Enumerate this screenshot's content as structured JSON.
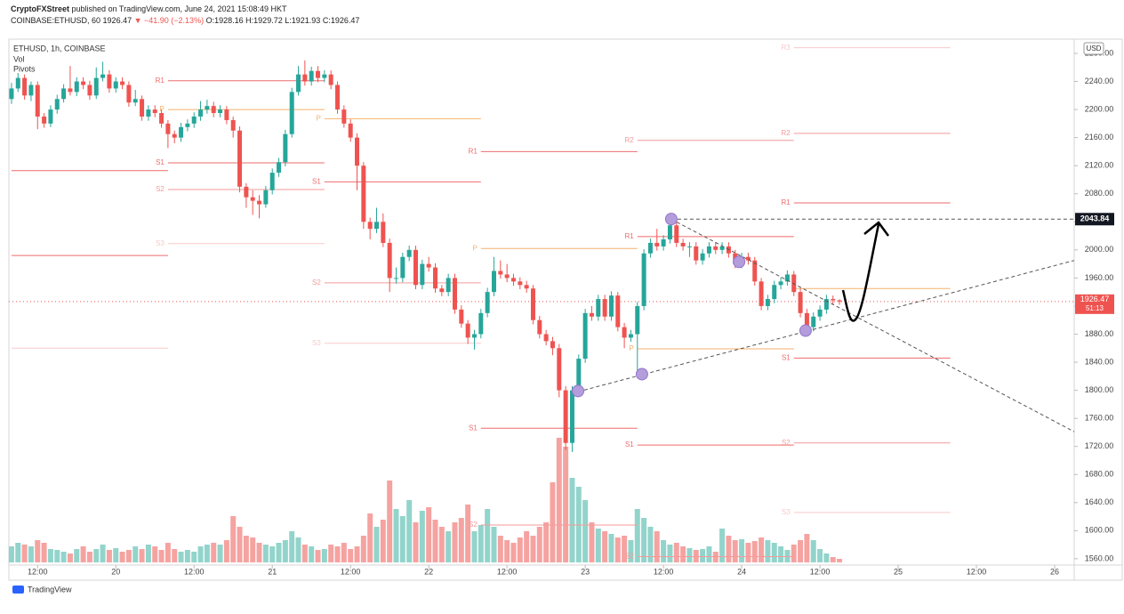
{
  "header": {
    "publisher": "CryptoFXStreet",
    "published": "published on TradingView.com, June 24, 2021 15:08:49 HKT",
    "symbol": "COINBASE:ETHUSD, 60",
    "change": "▼ −41.90 (−2.13%)",
    "ohlc_labels": [
      "O:",
      "H:",
      "L:",
      "C:"
    ]
  },
  "footer": {
    "brand": "TradingView"
  },
  "chart_data": {
    "type": "candlestick",
    "legend": [
      "ETHUSD, 1h, COINBASE",
      "Vol",
      "Pivots"
    ],
    "currency": "USD",
    "up_color": "#26a69a",
    "down_color": "#ef5350",
    "volume_up_color": "#92d4cb",
    "volume_down_color": "#f5a3a1",
    "xlim": [
      -0.4,
      163
    ],
    "ylim": [
      1551,
      2299
    ],
    "xticks": [
      {
        "value": 4,
        "label": "12:00"
      },
      {
        "value": 16,
        "label": "20"
      },
      {
        "value": 28,
        "label": "12:00"
      },
      {
        "value": 40,
        "label": "21"
      },
      {
        "value": 52,
        "label": "12:00"
      },
      {
        "value": 64,
        "label": "22"
      },
      {
        "value": 76,
        "label": "12:00"
      },
      {
        "value": 88,
        "label": "23"
      },
      {
        "value": 100,
        "label": "12:00"
      },
      {
        "value": 112,
        "label": "24"
      },
      {
        "value": 124,
        "label": "12:00"
      },
      {
        "value": 136,
        "label": "25"
      },
      {
        "value": 148,
        "label": "12:00"
      },
      {
        "value": 160,
        "label": "26"
      }
    ],
    "yticks": [
      {
        "value": 1560,
        "label": "1560.00"
      },
      {
        "value": 1600,
        "label": "1600.00"
      },
      {
        "value": 1640,
        "label": "1640.00"
      },
      {
        "value": 1680,
        "label": "1680.00"
      },
      {
        "value": 1720,
        "label": "1720.00"
      },
      {
        "value": 1760,
        "label": "1760.00"
      },
      {
        "value": 1800,
        "label": "1800.00"
      },
      {
        "value": 1840,
        "label": "1840.00"
      },
      {
        "value": 1880,
        "label": "1880.00"
      },
      {
        "value": 1920,
        "label": "1920.00"
      },
      {
        "value": 1960,
        "label": "1960.00"
      },
      {
        "value": 2000,
        "label": "2000.00"
      },
      {
        "value": 2040,
        "label": "2040.00"
      },
      {
        "value": 2080,
        "label": "2080.00"
      },
      {
        "value": 2120,
        "label": "2120.00"
      },
      {
        "value": 2160,
        "label": "2160.00"
      },
      {
        "value": 2200,
        "label": "2200.00"
      },
      {
        "value": 2240,
        "label": "2240.00"
      },
      {
        "value": 2280,
        "label": "2280.00"
      }
    ],
    "candles": [
      [
        2215,
        2238,
        2208,
        2230
      ],
      [
        2230,
        2252,
        2225,
        2245
      ],
      [
        2245,
        2250,
        2214,
        2220
      ],
      [
        2220,
        2240,
        2212,
        2235
      ],
      [
        2235,
        2240,
        2172,
        2190
      ],
      [
        2190,
        2195,
        2174,
        2180
      ],
      [
        2180,
        2206,
        2175,
        2200
      ],
      [
        2200,
        2221,
        2194,
        2215
      ],
      [
        2215,
        2236,
        2210,
        2230
      ],
      [
        2230,
        2262,
        2220,
        2225
      ],
      [
        2225,
        2246,
        2219,
        2240
      ],
      [
        2240,
        2246,
        2229,
        2235
      ],
      [
        2235,
        2241,
        2214,
        2220
      ],
      [
        2220,
        2260,
        2215,
        2245
      ],
      [
        2245,
        2268,
        2240,
        2250
      ],
      [
        2250,
        2256,
        2224,
        2230
      ],
      [
        2230,
        2246,
        2224,
        2240
      ],
      [
        2240,
        2246,
        2229,
        2235
      ],
      [
        2235,
        2240,
        2204,
        2210
      ],
      [
        2210,
        2228,
        2205,
        2215
      ],
      [
        2215,
        2220,
        2184,
        2190
      ],
      [
        2190,
        2206,
        2184,
        2200
      ],
      [
        2200,
        2206,
        2189,
        2195
      ],
      [
        2195,
        2200,
        2174,
        2180
      ],
      [
        2180,
        2185,
        2145,
        2165
      ],
      [
        2165,
        2170,
        2152,
        2160
      ],
      [
        2160,
        2181,
        2154,
        2175
      ],
      [
        2175,
        2186,
        2169,
        2180
      ],
      [
        2180,
        2196,
        2174,
        2190
      ],
      [
        2190,
        2212,
        2184,
        2200
      ],
      [
        2200,
        2214,
        2194,
        2205
      ],
      [
        2205,
        2211,
        2189,
        2195
      ],
      [
        2195,
        2206,
        2189,
        2200
      ],
      [
        2200,
        2205,
        2179,
        2185
      ],
      [
        2185,
        2190,
        2160,
        2170
      ],
      [
        2170,
        2176,
        2082,
        2090
      ],
      [
        2090,
        2095,
        2060,
        2075
      ],
      [
        2075,
        2085,
        2050,
        2070
      ],
      [
        2070,
        2078,
        2045,
        2065
      ],
      [
        2065,
        2091,
        2060,
        2085
      ],
      [
        2085,
        2116,
        2079,
        2110
      ],
      [
        2110,
        2131,
        2104,
        2125
      ],
      [
        2125,
        2171,
        2119,
        2165
      ],
      [
        2165,
        2231,
        2160,
        2225
      ],
      [
        2225,
        2262,
        2220,
        2250
      ],
      [
        2250,
        2270,
        2234,
        2240
      ],
      [
        2240,
        2261,
        2234,
        2255
      ],
      [
        2255,
        2262,
        2239,
        2245
      ],
      [
        2245,
        2256,
        2239,
        2250
      ],
      [
        2250,
        2256,
        2229,
        2235
      ],
      [
        2235,
        2240,
        2194,
        2200
      ],
      [
        2200,
        2206,
        2174,
        2180
      ],
      [
        2180,
        2186,
        2154,
        2160
      ],
      [
        2160,
        2166,
        2085,
        2120
      ],
      [
        2120,
        2125,
        2030,
        2040
      ],
      [
        2040,
        2046,
        2015,
        2030
      ],
      [
        2030,
        2060,
        2024,
        2040
      ],
      [
        2040,
        2052,
        2004,
        2010
      ],
      [
        2010,
        2016,
        1940,
        1960
      ],
      [
        1960,
        1975,
        1952,
        1960
      ],
      [
        1960,
        1996,
        1954,
        1990
      ],
      [
        1990,
        2006,
        1984,
        2000
      ],
      [
        2000,
        2006,
        1944,
        1950
      ],
      [
        1950,
        1986,
        1944,
        1980
      ],
      [
        1980,
        1990,
        1969,
        1975
      ],
      [
        1975,
        1981,
        1939,
        1945
      ],
      [
        1945,
        1950,
        1934,
        1940
      ],
      [
        1940,
        1966,
        1934,
        1960
      ],
      [
        1960,
        1966,
        1909,
        1915
      ],
      [
        1915,
        1921,
        1889,
        1895
      ],
      [
        1895,
        1900,
        1866,
        1875
      ],
      [
        1875,
        1886,
        1858,
        1880
      ],
      [
        1880,
        1916,
        1874,
        1910
      ],
      [
        1910,
        1946,
        1904,
        1940
      ],
      [
        1940,
        1990,
        1934,
        1970
      ],
      [
        1970,
        1985,
        1959,
        1965
      ],
      [
        1965,
        1980,
        1954,
        1960
      ],
      [
        1960,
        1966,
        1949,
        1955
      ],
      [
        1955,
        1961,
        1944,
        1950
      ],
      [
        1950,
        1956,
        1939,
        1945
      ],
      [
        1945,
        1950,
        1894,
        1900
      ],
      [
        1900,
        1906,
        1874,
        1880
      ],
      [
        1880,
        1886,
        1864,
        1870
      ],
      [
        1870,
        1876,
        1850,
        1860
      ],
      [
        1860,
        1866,
        1790,
        1800
      ],
      [
        1800,
        1806,
        1715,
        1725
      ],
      [
        1725,
        1806,
        1712,
        1800
      ],
      [
        1800,
        1851,
        1794,
        1845
      ],
      [
        1845,
        1916,
        1839,
        1910
      ],
      [
        1910,
        1920,
        1899,
        1905
      ],
      [
        1905,
        1936,
        1899,
        1930
      ],
      [
        1930,
        1936,
        1899,
        1905
      ],
      [
        1905,
        1941,
        1899,
        1935
      ],
      [
        1935,
        1940,
        1884,
        1890
      ],
      [
        1890,
        1896,
        1860,
        1875
      ],
      [
        1875,
        1886,
        1869,
        1880
      ],
      [
        1880,
        1926,
        1820,
        1920
      ],
      [
        1920,
        2001,
        1914,
        1995
      ],
      [
        1995,
        2016,
        1989,
        2010
      ],
      [
        2010,
        2030,
        1999,
        2005
      ],
      [
        2005,
        2021,
        1999,
        2015
      ],
      [
        2015,
        2044,
        2009,
        2035
      ],
      [
        2035,
        2044,
        2004,
        2010
      ],
      [
        2010,
        2016,
        1999,
        2005
      ],
      [
        2005,
        2011,
        1990,
        2005
      ],
      [
        2005,
        2011,
        1979,
        1985
      ],
      [
        1985,
        2001,
        1979,
        1995
      ],
      [
        1995,
        2011,
        1989,
        2005
      ],
      [
        2005,
        2011,
        1994,
        2000
      ],
      [
        2000,
        2011,
        1994,
        2005
      ],
      [
        2005,
        2011,
        1989,
        1995
      ],
      [
        1995,
        2000,
        1974,
        1980
      ],
      [
        1980,
        1996,
        1974,
        1990
      ],
      [
        1990,
        1996,
        1979,
        1985
      ],
      [
        1985,
        1990,
        1949,
        1955
      ],
      [
        1955,
        1960,
        1914,
        1920
      ],
      [
        1920,
        1936,
        1914,
        1930
      ],
      [
        1930,
        1956,
        1924,
        1950
      ],
      [
        1950,
        1961,
        1944,
        1955
      ],
      [
        1955,
        1971,
        1949,
        1965
      ],
      [
        1965,
        1970,
        1934,
        1940
      ],
      [
        1940,
        1946,
        1904,
        1910
      ],
      [
        1910,
        1916,
        1884,
        1890
      ],
      [
        1890,
        1911,
        1884,
        1905
      ],
      [
        1905,
        1921,
        1899,
        1915
      ],
      [
        1915,
        1936,
        1909,
        1930
      ],
      [
        1930,
        1935,
        1922,
        1928.16
      ],
      [
        1928.16,
        1929.72,
        1921.93,
        1926.47
      ]
    ],
    "volume": [
      18,
      22,
      20,
      18,
      25,
      22,
      15,
      14,
      12,
      10,
      15,
      18,
      12,
      15,
      20,
      14,
      16,
      12,
      14,
      18,
      15,
      20,
      18,
      14,
      22,
      15,
      12,
      14,
      12,
      18,
      20,
      22,
      20,
      25,
      52,
      40,
      30,
      28,
      22,
      20,
      18,
      22,
      25,
      35,
      28,
      20,
      18,
      14,
      15,
      20,
      18,
      22,
      15,
      18,
      30,
      55,
      40,
      48,
      92,
      60,
      52,
      70,
      45,
      58,
      62,
      48,
      40,
      35,
      45,
      50,
      65,
      35,
      42,
      60,
      40,
      30,
      25,
      22,
      28,
      35,
      30,
      40,
      45,
      90,
      140,
      130,
      95,
      85,
      70,
      45,
      38,
      35,
      32,
      28,
      30,
      25,
      60,
      50,
      40,
      35,
      25,
      20,
      22,
      18,
      16,
      14,
      15,
      18,
      12,
      38,
      30,
      25,
      26,
      22,
      24,
      28,
      25,
      22,
      18,
      14,
      20,
      25,
      32,
      25,
      15,
      10,
      6,
      4
    ],
    "pivots": [
      {
        "label": null,
        "value": 2113,
        "start": 0,
        "end": 24,
        "color": "#ef6b6b"
      },
      {
        "label": null,
        "value": 1992,
        "start": 0,
        "end": 24,
        "color": "#ef6b6b"
      },
      {
        "label": null,
        "value": 1860,
        "start": 0,
        "end": 24,
        "color": "#f9caca"
      },
      {
        "label": "R1",
        "value": 2241,
        "start": 24,
        "end": 48,
        "color": "#ef6b6b"
      },
      {
        "label": "P",
        "value": 2200,
        "start": 24,
        "end": 48,
        "color": "#f5b26b"
      },
      {
        "label": "S1",
        "value": 2124,
        "start": 24,
        "end": 48,
        "color": "#ef6b6b"
      },
      {
        "label": "S2",
        "value": 2086,
        "start": 24,
        "end": 48,
        "color": "#f59a9a"
      },
      {
        "label": "S3",
        "value": 2009,
        "start": 24,
        "end": 48,
        "color": "#f9caca"
      },
      {
        "label": "P",
        "value": 2187,
        "start": 48,
        "end": 72,
        "color": "#f5b26b"
      },
      {
        "label": "S1",
        "value": 2097,
        "start": 48,
        "end": 72,
        "color": "#ef6b6b"
      },
      {
        "label": "S2",
        "value": 1953,
        "start": 48,
        "end": 72,
        "color": "#f59a9a"
      },
      {
        "label": "S3",
        "value": 1867,
        "start": 48,
        "end": 72,
        "color": "#f9caca"
      },
      {
        "label": "R1",
        "value": 2140,
        "start": 72,
        "end": 96,
        "color": "#ef6b6b"
      },
      {
        "label": "P",
        "value": 2002,
        "start": 72,
        "end": 96,
        "color": "#f5b26b"
      },
      {
        "label": "S1",
        "value": 1746,
        "start": 72,
        "end": 96,
        "color": "#ef6b6b"
      },
      {
        "label": "S2",
        "value": 1608,
        "start": 72,
        "end": 96,
        "color": "#f59a9a"
      },
      {
        "label": "R2",
        "value": 2156,
        "start": 96,
        "end": 120,
        "color": "#f59a9a"
      },
      {
        "label": "R1",
        "value": 2019,
        "start": 96,
        "end": 120,
        "color": "#ef6b6b"
      },
      {
        "label": "P",
        "value": 1859,
        "start": 96,
        "end": 120,
        "color": "#f5b26b"
      },
      {
        "label": "S1",
        "value": 1722,
        "start": 96,
        "end": 120,
        "color": "#ef6b6b"
      },
      {
        "label": "S2",
        "value": 1563,
        "start": 96,
        "end": 120,
        "color": "#f59a9a"
      },
      {
        "label": "R3",
        "value": 2288,
        "start": 120,
        "end": 144,
        "color": "#f9caca"
      },
      {
        "label": "R2",
        "value": 2166,
        "start": 120,
        "end": 144,
        "color": "#f59a9a"
      },
      {
        "label": "R1",
        "value": 2067,
        "start": 120,
        "end": 144,
        "color": "#ef6b6b"
      },
      {
        "label": null,
        "value": 1945,
        "start": 120,
        "end": 144,
        "color": "#f5b26b"
      },
      {
        "label": "S1",
        "value": 1846,
        "start": 120,
        "end": 144,
        "color": "#ef6b6b"
      },
      {
        "label": "S2",
        "value": 1725,
        "start": 120,
        "end": 144,
        "color": "#f59a9a"
      },
      {
        "label": "S3",
        "value": 1626,
        "start": 120,
        "end": 144,
        "color": "#f9caca"
      }
    ],
    "hline": {
      "value": 2043.84,
      "start": 101.2
    },
    "last_price": 1926.47,
    "countdown": "51:13",
    "trendlines": [
      {
        "x": [
          101.2,
          163
        ],
        "y": [
          2043.84,
          1741
        ]
      },
      {
        "x": [
          86.9,
          163
        ],
        "y": [
          1798,
          1985
        ]
      }
    ],
    "markers": {
      "x": [
        101.2,
        111.6,
        121.8,
        96.7,
        86.9
      ],
      "y": [
        2044,
        1983,
        1885,
        1823,
        1799
      ],
      "color": "#b39ddb"
    }
  }
}
